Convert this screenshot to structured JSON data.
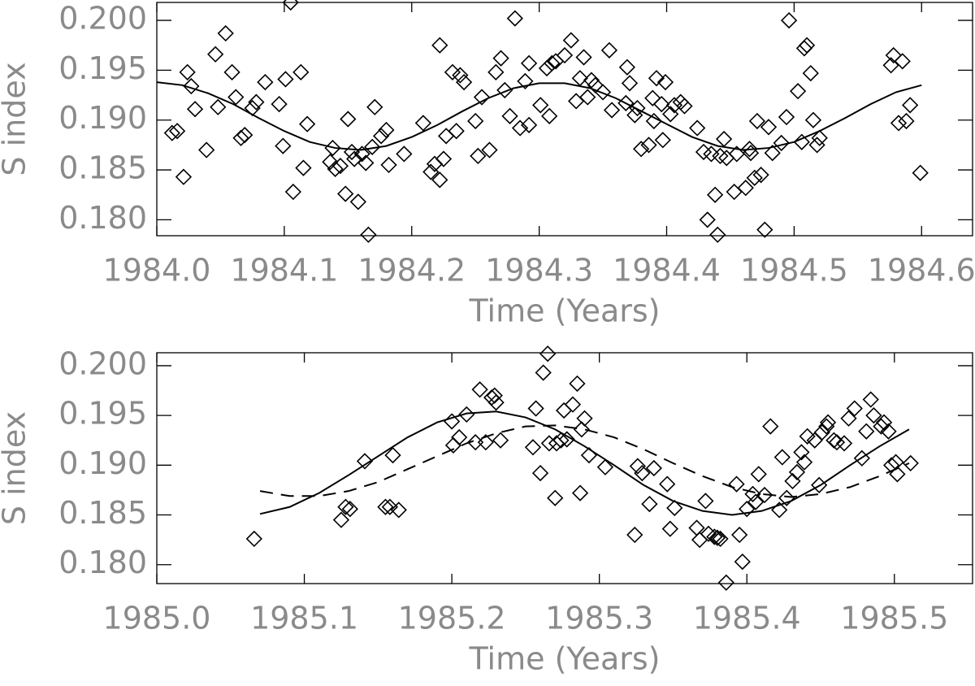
{
  "chart_data": [
    {
      "type": "scatter",
      "xlabel": "Time (Years)",
      "ylabel": "S index",
      "xlim": [
        1984.0,
        1984.64
      ],
      "ylim": [
        0.1784,
        0.2018
      ],
      "xticks": [
        {
          "value": 1984,
          "label": "1984.0"
        },
        1984.1,
        1984.2,
        1984.3,
        1984.4,
        1984.5,
        1984.6
      ],
      "yticks": [
        {
          "value": 0.18,
          "label": "0.180"
        },
        0.185,
        {
          "value": 0.19,
          "label": "0.190"
        },
        0.195,
        {
          "value": 0.2,
          "label": "0.200"
        }
      ],
      "series": [
        {
          "style": "diamond",
          "color": "#000000",
          "x": [
            1984.012,
            1984.016,
            1984.021,
            1984.024,
            1984.027,
            1984.03,
            1984.039,
            1984.046,
            1984.048,
            1984.054,
            1984.059,
            1984.062,
            1984.066,
            1984.069,
            1984.075,
            1984.078,
            1984.085,
            1984.096,
            1984.099,
            1984.101,
            1984.105,
            1984.107,
            1984.113,
            1984.115,
            1984.118,
            1984.136,
            1984.138,
            1984.14,
            1984.144,
            1984.148,
            1984.15,
            1984.153,
            1984.155,
            1984.158,
            1984.161,
            1984.164,
            1984.166,
            1984.169,
            1984.171,
            1984.176,
            1984.18,
            1984.182,
            1984.194,
            1984.209,
            1984.215,
            1984.218,
            1984.222,
            1984.222,
            1984.225,
            1984.227,
            1984.232,
            1984.235,
            1984.238,
            1984.241,
            1984.25,
            1984.252,
            1984.255,
            1984.261,
            1984.266,
            1984.27,
            1984.273,
            1984.277,
            1984.281,
            1984.285,
            1984.289,
            1984.292,
            1984.292,
            1984.301,
            1984.306,
            1984.308,
            1984.31,
            1984.313,
            1984.32,
            1984.325,
            1984.329,
            1984.332,
            1984.335,
            1984.338,
            1984.341,
            1984.344,
            1984.35,
            1984.355,
            1984.357,
            1984.368,
            1984.369,
            1984.371,
            1984.375,
            1984.377,
            1984.38,
            1984.386,
            1984.389,
            1984.39,
            1984.392,
            1984.396,
            1984.397,
            1984.399,
            1984.403,
            1984.406,
            1984.411,
            1984.414,
            1984.424,
            1984.429,
            1984.432,
            1984.435,
            1984.438,
            1984.44,
            1984.442,
            1984.445,
            1984.447,
            1984.453,
            1984.455,
            1984.462,
            1984.465,
            1984.466,
            1984.469,
            1984.471,
            1984.474,
            1984.477,
            1984.48,
            1984.483,
            1984.49,
            1984.494,
            1984.496,
            1984.503,
            1984.506,
            1984.508,
            1984.51,
            1984.513,
            1984.515,
            1984.518,
            1984.52,
            1984.576,
            1984.578,
            1984.582,
            1984.585,
            1984.588,
            1984.591,
            1984.599
          ],
          "values": [
            0.1887,
            0.1889,
            0.1843,
            0.1948,
            0.1934,
            0.1911,
            0.187,
            0.1966,
            0.1913,
            0.1987,
            0.1948,
            0.1923,
            0.1882,
            0.1885,
            0.1912,
            0.1918,
            0.1938,
            0.1916,
            0.1874,
            0.1941,
            0.2018,
            0.1828,
            0.1948,
            0.1852,
            0.1896,
            0.1858,
            0.1872,
            0.1851,
            0.1854,
            0.1826,
            0.1901,
            0.1868,
            0.1861,
            0.1818,
            0.1866,
            0.1857,
            0.1785,
            0.1873,
            0.1913,
            0.1884,
            0.189,
            0.1855,
            0.1866,
            0.1897,
            0.1848,
            0.1856,
            0.1975,
            0.184,
            0.1861,
            0.1884,
            0.1948,
            0.1889,
            0.1945,
            0.1938,
            0.1899,
            0.1864,
            0.1923,
            0.187,
            0.1948,
            0.1962,
            0.193,
            0.1904,
            0.2002,
            0.1892,
            0.1939,
            0.1957,
            0.1895,
            0.1915,
            0.1952,
            0.1904,
            0.1957,
            0.1959,
            0.1965,
            0.198,
            0.1919,
            0.1942,
            0.1963,
            0.1923,
            0.194,
            0.1935,
            0.1928,
            0.197,
            0.191,
            0.1917,
            0.1953,
            0.1937,
            0.1905,
            0.1912,
            0.1871,
            0.1875,
            0.1922,
            0.1899,
            0.1942,
            0.1916,
            0.188,
            0.1938,
            0.1906,
            0.1915,
            0.1918,
            0.1914,
            0.1892,
            0.1868,
            0.18,
            0.1866,
            0.1825,
            0.1785,
            0.1864,
            0.1881,
            0.1862,
            0.1828,
            0.1866,
            0.1832,
            0.1871,
            0.1867,
            0.1842,
            0.1899,
            0.1845,
            0.179,
            0.1893,
            0.1867,
            0.1877,
            0.1903,
            0.2,
            0.1929,
            0.1878,
            0.1972,
            0.1975,
            0.1947,
            0.19,
            0.1875,
            0.1882,
            0.1955,
            0.1965,
            0.1897,
            0.1959,
            0.1899,
            0.1915,
            0.1847
          ]
        },
        {
          "style": "solid",
          "color": "#000000",
          "x": [
            1984.0,
            1984.02,
            1984.04,
            1984.06,
            1984.08,
            1984.1,
            1984.12,
            1984.14,
            1984.16,
            1984.18,
            1984.2,
            1984.22,
            1984.24,
            1984.26,
            1984.28,
            1984.3,
            1984.32,
            1984.34,
            1984.36,
            1984.38,
            1984.4,
            1984.42,
            1984.44,
            1984.46,
            1984.48,
            1984.5,
            1984.52,
            1984.54,
            1984.56,
            1984.58,
            1984.6
          ],
          "values": [
            0.1938,
            0.1935,
            0.1927,
            0.1916,
            0.1902,
            0.1889,
            0.1878,
            0.1872,
            0.187,
            0.1874,
            0.1883,
            0.1895,
            0.1909,
            0.1922,
            0.1932,
            0.1937,
            0.1937,
            0.1932,
            0.1922,
            0.1909,
            0.1896,
            0.1883,
            0.1874,
            0.187,
            0.1872,
            0.1878,
            0.1889,
            0.1902,
            0.1916,
            0.1928,
            0.1935
          ]
        }
      ]
    },
    {
      "type": "scatter",
      "xlabel": "Time (Years)",
      "ylabel": "S index",
      "xlim": [
        1985.0,
        1985.553
      ],
      "ylim": [
        0.1781,
        0.2013
      ],
      "xticks": [
        {
          "value": 1985,
          "label": "1985.0"
        },
        1985.1,
        1985.2,
        1985.3,
        1985.4,
        1985.5
      ],
      "yticks": [
        {
          "value": 0.18,
          "label": "0.180"
        },
        0.185,
        {
          "value": 0.19,
          "label": "0.190"
        },
        0.195,
        {
          "value": 0.2,
          "label": "0.200"
        }
      ],
      "series": [
        {
          "style": "diamond",
          "color": "#000000",
          "x": [
            1985.066,
            1985.125,
            1985.128,
            1985.131,
            1985.141,
            1985.155,
            1985.158,
            1985.16,
            1985.164,
            1985.2,
            1985.201,
            1985.205,
            1985.21,
            1985.216,
            1985.219,
            1985.223,
            1985.227,
            1985.229,
            1985.23,
            1985.233,
            1985.255,
            1985.257,
            1985.26,
            1985.262,
            1985.265,
            1985.266,
            1985.27,
            1985.271,
            1985.274,
            1985.276,
            1985.278,
            1985.282,
            1985.285,
            1985.287,
            1985.288,
            1985.29,
            1985.293,
            1985.304,
            1985.324,
            1985.326,
            1985.329,
            1985.334,
            1985.337,
            1985.346,
            1985.348,
            1985.351,
            1985.366,
            1985.368,
            1985.372,
            1985.374,
            1985.378,
            1985.38,
            1985.382,
            1985.386,
            1985.393,
            1985.395,
            1985.397,
            1985.4,
            1985.404,
            1985.406,
            1985.408,
            1985.412,
            1985.416,
            1985.422,
            1985.424,
            1985.427,
            1985.431,
            1985.434,
            1985.437,
            1985.439,
            1985.441,
            1985.446,
            1985.449,
            1985.451,
            1985.454,
            1985.455,
            1985.459,
            1985.461,
            1985.466,
            1985.469,
            1985.473,
            1985.478,
            1985.481,
            1985.484,
            1985.486,
            1985.491,
            1985.493,
            1985.496,
            1985.498,
            1985.501,
            1985.502,
            1985.511
          ],
          "values": [
            0.1826,
            0.1845,
            0.1858,
            0.1856,
            0.1904,
            0.1858,
            0.1858,
            0.191,
            0.1855,
            0.1944,
            0.192,
            0.1928,
            0.1951,
            0.1923,
            0.1976,
            0.1923,
            0.1968,
            0.197,
            0.1963,
            0.1925,
            0.1918,
            0.1957,
            0.1892,
            0.1993,
            0.2012,
            0.1922,
            0.1867,
            0.1922,
            0.1925,
            0.1955,
            0.1926,
            0.1961,
            0.1982,
            0.1872,
            0.1936,
            0.1947,
            0.191,
            0.1898,
            0.183,
            0.1899,
            0.1892,
            0.1861,
            0.1897,
            0.1881,
            0.1836,
            0.1857,
            0.1837,
            0.1825,
            0.1864,
            0.1831,
            0.1828,
            0.1827,
            0.1826,
            0.1782,
            0.1881,
            0.183,
            0.1803,
            0.1856,
            0.1871,
            0.1863,
            0.1891,
            0.187,
            0.1939,
            0.1855,
            0.1908,
            0.1867,
            0.1884,
            0.1893,
            0.1913,
            0.1903,
            0.1929,
            0.1925,
            0.188,
            0.1933,
            0.1939,
            0.1943,
            0.1925,
            0.1923,
            0.1922,
            0.1947,
            0.1957,
            0.1907,
            0.1934,
            0.1966,
            0.195,
            0.1939,
            0.1943,
            0.1934,
            0.19,
            0.1903,
            0.1891,
            0.1902
          ]
        },
        {
          "style": "solid",
          "color": "#000000",
          "x": [
            1985.07,
            1985.09,
            1985.11,
            1985.13,
            1985.15,
            1985.17,
            1985.19,
            1985.21,
            1985.23,
            1985.25,
            1985.27,
            1985.29,
            1985.31,
            1985.33,
            1985.35,
            1985.37,
            1985.39,
            1985.41,
            1985.43,
            1985.45,
            1985.47,
            1985.49,
            1985.51
          ],
          "values": [
            0.1851,
            0.1858,
            0.1872,
            0.189,
            0.1909,
            0.1928,
            0.1943,
            0.1952,
            0.1954,
            0.1948,
            0.1936,
            0.1919,
            0.19,
            0.188,
            0.1864,
            0.1854,
            0.185,
            0.1854,
            0.1864,
            0.188,
            0.19,
            0.1919,
            0.1936
          ]
        },
        {
          "style": "dashed",
          "color": "#000000",
          "x": [
            1985.07,
            1985.09,
            1985.11,
            1985.13,
            1985.15,
            1985.17,
            1985.19,
            1985.21,
            1985.23,
            1985.25,
            1985.27,
            1985.29,
            1985.31,
            1985.33,
            1985.35,
            1985.37,
            1985.39,
            1985.41,
            1985.43,
            1985.45,
            1985.47,
            1985.49,
            1985.51
          ],
          "values": [
            0.1874,
            0.1869,
            0.1869,
            0.1874,
            0.1883,
            0.1896,
            0.1909,
            0.1922,
            0.1932,
            0.1939,
            0.194,
            0.1936,
            0.1928,
            0.1916,
            0.1902,
            0.1889,
            0.1878,
            0.1871,
            0.1868,
            0.1871,
            0.1878,
            0.1889,
            0.1902
          ]
        }
      ]
    }
  ]
}
